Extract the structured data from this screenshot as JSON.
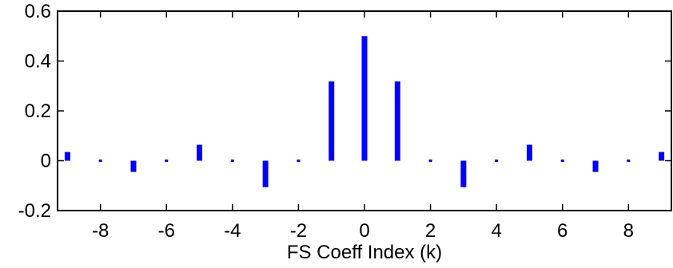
{
  "chart_data": {
    "type": "bar",
    "title": "",
    "xlabel": "FS Coeff Index (k)",
    "ylabel": "",
    "xlim": [
      -9.3,
      9.3
    ],
    "ylim": [
      -0.2,
      0.6
    ],
    "x_ticks": [
      -8,
      -6,
      -4,
      -2,
      0,
      2,
      4,
      6,
      8
    ],
    "x_tick_labels": [
      "-8",
      "-6",
      "-4",
      "-2",
      "0",
      "2",
      "4",
      "6",
      "8"
    ],
    "y_ticks": [
      -0.2,
      0,
      0.2,
      0.4,
      0.6
    ],
    "y_tick_labels": [
      "-0.2",
      "0",
      "0.2",
      "0.4",
      "0.6"
    ],
    "grid": false,
    "legend": "none",
    "series": [
      {
        "x": [
          -9,
          -8,
          -7,
          -6,
          -5,
          -4,
          -3,
          -2,
          -1,
          0,
          1,
          2,
          3,
          4,
          5,
          6,
          7,
          8,
          9
        ],
        "values": [
          0.035,
          0,
          -0.045,
          0,
          0.064,
          0,
          -0.106,
          0,
          0.318,
          0.5,
          0.318,
          0,
          -0.106,
          0,
          0.064,
          0,
          -0.045,
          0,
          0.035
        ]
      }
    ],
    "colors": {
      "bar": "#0000ff",
      "axis": "#000000"
    }
  }
}
